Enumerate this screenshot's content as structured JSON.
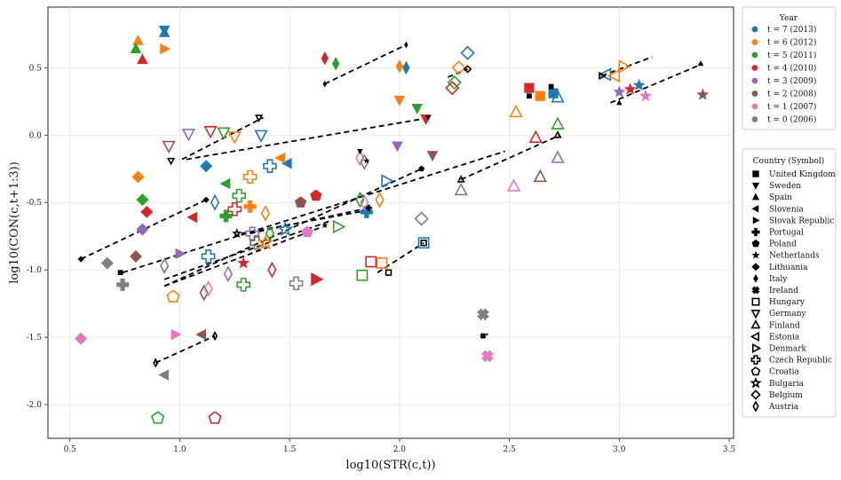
{
  "chart_data": {
    "type": "scatter",
    "xlabel": "log10(STR(c,t))",
    "ylabel": "log10(CON(c,t+1:3))",
    "xlim": [
      0.4,
      3.52
    ],
    "ylim": [
      -2.25,
      0.95
    ],
    "xticks": [
      "0.5",
      "1.0",
      "1.5",
      "2.0",
      "2.5",
      "3.0",
      "3.5"
    ],
    "yticks": [
      "0.5",
      "0.0",
      "-0.5",
      "-1.0",
      "-1.5",
      "-2.0"
    ],
    "grid": true,
    "year_legend": {
      "title": "Year",
      "entries": [
        {
          "label": "t = 7 (2013)",
          "color": "#1f77b4",
          "t": 7
        },
        {
          "label": "t = 6 (2012)",
          "color": "#ff7f0e",
          "t": 6
        },
        {
          "label": "t = 5 (2011)",
          "color": "#2ca02c",
          "t": 5
        },
        {
          "label": "t = 4 (2010)",
          "color": "#d62728",
          "t": 4
        },
        {
          "label": "t = 3 (2009)",
          "color": "#9467bd",
          "t": 3
        },
        {
          "label": "t = 2 (2008)",
          "color": "#8c564b",
          "t": 2
        },
        {
          "label": "t = 1 (2007)",
          "color": "#e377c2",
          "t": 1
        },
        {
          "label": "t = 0 (2006)",
          "color": "#7f7f7f",
          "t": 0
        }
      ]
    },
    "country_legend": {
      "title": "Country (Symbol)",
      "entries": [
        {
          "country": "United Kingdom",
          "symbol": "square",
          "filled": true
        },
        {
          "country": "Sweden",
          "symbol": "triangle-down",
          "filled": true
        },
        {
          "country": "Spain",
          "symbol": "triangle-up",
          "filled": true
        },
        {
          "country": "Slovenia",
          "symbol": "triangle-left",
          "filled": true
        },
        {
          "country": "Slovak Republic",
          "symbol": "triangle-right",
          "filled": true
        },
        {
          "country": "Portugal",
          "symbol": "plus",
          "filled": true
        },
        {
          "country": "Poland",
          "symbol": "pentagon",
          "filled": true
        },
        {
          "country": "Netherlands",
          "symbol": "star",
          "filled": true
        },
        {
          "country": "Lithuania",
          "symbol": "diamond",
          "filled": true
        },
        {
          "country": "Italy",
          "symbol": "thin-diamond",
          "filled": true
        },
        {
          "country": "Ireland",
          "symbol": "x",
          "filled": true
        },
        {
          "country": "Hungary",
          "symbol": "square",
          "filled": false
        },
        {
          "country": "Germany",
          "symbol": "triangle-down",
          "filled": false
        },
        {
          "country": "Finland",
          "symbol": "triangle-up",
          "filled": false
        },
        {
          "country": "Estonia",
          "symbol": "triangle-left",
          "filled": false
        },
        {
          "country": "Denmark",
          "symbol": "triangle-right",
          "filled": false
        },
        {
          "country": "Czech Republic",
          "symbol": "plus",
          "filled": false
        },
        {
          "country": "Croatia",
          "symbol": "pentagon",
          "filled": false
        },
        {
          "country": "Bulgaria",
          "symbol": "star",
          "filled": false
        },
        {
          "country": "Belgium",
          "symbol": "diamond",
          "filled": false
        },
        {
          "country": "Austria",
          "symbol": "thin-diamond",
          "filled": false
        }
      ]
    },
    "trend_lines": [
      {
        "country": "Lithuania",
        "x": [
          0.55,
          1.12
        ],
        "y": [
          -0.92,
          -0.48
        ]
      },
      {
        "country": "United Kingdom",
        "x": [
          0.74,
          2.48
        ],
        "y": [
          -1.02,
          -0.12
        ]
      },
      {
        "country": "Sweden",
        "x": [
          1.03,
          2.14
        ],
        "y": [
          -0.18,
          0.13
        ]
      },
      {
        "country": "Germany",
        "x": [
          1.01,
          1.38
        ],
        "y": [
          -0.18,
          0.13
        ]
      },
      {
        "country": "Netherlands",
        "x": [
          0.93,
          1.68
        ],
        "y": [
          -1.07,
          -0.64
        ]
      },
      {
        "country": "Poland",
        "x": [
          0.93,
          2.1
        ],
        "y": [
          -1.12,
          -0.25
        ]
      },
      {
        "country": "Bulgaria",
        "x": [
          0.93,
          1.65
        ],
        "y": [
          -1.12,
          -0.68
        ]
      },
      {
        "country": "Italy",
        "x": [
          1.66,
          2.03
        ],
        "y": [
          0.38,
          0.67
        ]
      },
      {
        "country": "Belgium",
        "x": [
          2.22,
          2.31
        ],
        "y": [
          0.43,
          0.49
        ]
      },
      {
        "country": "Hungary",
        "x": [
          1.9,
          2.11
        ],
        "y": [
          -1.02,
          -0.8
        ]
      },
      {
        "country": "Czech Republic",
        "x": [
          1.28,
          1.85
        ],
        "y": [
          -0.73,
          -0.56
        ]
      },
      {
        "country": "Austria",
        "x": [
          0.89,
          1.16
        ],
        "y": [
          -1.69,
          -1.49
        ]
      },
      {
        "country": "Ireland",
        "x": [
          2.38,
          2.41
        ],
        "y": [
          -1.49,
          -1.47
        ]
      },
      {
        "country": "Portugal",
        "x": [
          1.32,
          1.86
        ],
        "y": [
          -0.73,
          -0.54
        ]
      },
      {
        "country": "Finland",
        "x": [
          2.28,
          2.73
        ],
        "y": [
          -0.33,
          0.0
        ]
      },
      {
        "country": "Spain",
        "x": [
          2.96,
          3.38
        ],
        "y": [
          0.24,
          0.53
        ]
      },
      {
        "country": "Denmark",
        "x": [
          2.92,
          3.15
        ],
        "y": [
          0.44,
          0.58
        ]
      }
    ],
    "trend_end_points": [
      {
        "country": "Lithuania",
        "x": 0.55,
        "y": -0.92
      },
      {
        "country": "Lithuania",
        "x": 1.12,
        "y": -0.48
      },
      {
        "country": "United Kingdom",
        "x": 0.73,
        "y": -1.02
      },
      {
        "country": "United Kingdom",
        "x": 2.59,
        "y": 0.29
      },
      {
        "country": "United Kingdom",
        "x": 2.69,
        "y": 0.36
      },
      {
        "country": "Sweden",
        "x": 1.82,
        "y": -0.12
      },
      {
        "country": "Sweden",
        "x": 2.13,
        "y": 0.13
      },
      {
        "country": "Germany",
        "x": 1.36,
        "y": 0.13
      },
      {
        "country": "Germany",
        "x": 0.96,
        "y": -0.19
      },
      {
        "country": "Netherlands",
        "x": 1.66,
        "y": -0.67
      },
      {
        "country": "Netherlands",
        "x": 1.85,
        "y": -0.19
      },
      {
        "country": "Poland",
        "x": 2.1,
        "y": -0.25
      },
      {
        "country": "Bulgaria",
        "x": 1.26,
        "y": -0.73
      },
      {
        "country": "Italy",
        "x": 1.66,
        "y": 0.38
      },
      {
        "country": "Italy",
        "x": 2.03,
        "y": 0.67
      },
      {
        "country": "Belgium",
        "x": 2.31,
        "y": 0.49
      },
      {
        "country": "Hungary",
        "x": 1.95,
        "y": -1.02
      },
      {
        "country": "Hungary",
        "x": 2.11,
        "y": -0.8
      },
      {
        "country": "Ireland",
        "x": 2.38,
        "y": -1.49
      },
      {
        "country": "Finland",
        "x": 2.28,
        "y": -0.33
      },
      {
        "country": "Finland",
        "x": 2.72,
        "y": 0.0
      },
      {
        "country": "Spain",
        "x": 3.37,
        "y": 0.53
      },
      {
        "country": "Spain",
        "x": 3.0,
        "y": 0.24
      },
      {
        "country": "Denmark",
        "x": 2.92,
        "y": 0.44
      },
      {
        "country": "Austria",
        "x": 0.89,
        "y": -1.69
      },
      {
        "country": "Austria",
        "x": 1.16,
        "y": -1.49
      },
      {
        "country": "Portugal",
        "x": 1.86,
        "y": -0.54
      }
    ],
    "points": [
      {
        "country": "United Kingdom",
        "t": 7,
        "x": 2.7,
        "y": 0.31
      },
      {
        "country": "United Kingdom",
        "t": 6,
        "x": 2.64,
        "y": 0.29
      },
      {
        "country": "United Kingdom",
        "t": 4,
        "x": 2.59,
        "y": 0.35
      },
      {
        "country": "Sweden",
        "t": 7,
        "x": 0.93,
        "y": 0.78
      },
      {
        "country": "Sweden",
        "t": 6,
        "x": 2.0,
        "y": 0.26
      },
      {
        "country": "Sweden",
        "t": 5,
        "x": 2.08,
        "y": 0.2
      },
      {
        "country": "Sweden",
        "t": 4,
        "x": 2.12,
        "y": 0.12
      },
      {
        "country": "Sweden",
        "t": 3,
        "x": 1.99,
        "y": -0.08
      },
      {
        "country": "Sweden",
        "t": 2,
        "x": 2.15,
        "y": -0.15
      },
      {
        "country": "Spain",
        "t": 7,
        "x": 0.93,
        "y": 0.76
      },
      {
        "country": "Spain",
        "t": 6,
        "x": 0.81,
        "y": 0.7
      },
      {
        "country": "Spain",
        "t": 5,
        "x": 0.8,
        "y": 0.64
      },
      {
        "country": "Spain",
        "t": 4,
        "x": 0.83,
        "y": 0.56
      },
      {
        "country": "Slovenia",
        "t": 7,
        "x": 1.49,
        "y": -0.21
      },
      {
        "country": "Slovenia",
        "t": 6,
        "x": 1.46,
        "y": -0.17
      },
      {
        "country": "Slovenia",
        "t": 5,
        "x": 1.21,
        "y": -0.36
      },
      {
        "country": "Slovenia",
        "t": 4,
        "x": 1.06,
        "y": -0.61
      },
      {
        "country": "Slovenia",
        "t": 2,
        "x": 1.1,
        "y": -1.48
      },
      {
        "country": "Slovenia",
        "t": 0,
        "x": 0.93,
        "y": -1.78
      },
      {
        "country": "Slovak Republic",
        "t": 6,
        "x": 0.93,
        "y": 0.64
      },
      {
        "country": "Slovak Republic",
        "t": 4,
        "x": 1.62,
        "y": -1.07
      },
      {
        "country": "Slovak Republic",
        "t": 3,
        "x": 1.0,
        "y": -0.88
      },
      {
        "country": "Slovak Republic",
        "t": 1,
        "x": 0.98,
        "y": -1.48
      },
      {
        "country": "Portugal",
        "t": 7,
        "x": 1.85,
        "y": -0.57
      },
      {
        "country": "Portugal",
        "t": 6,
        "x": 1.32,
        "y": -0.53
      },
      {
        "country": "Portugal",
        "t": 5,
        "x": 1.21,
        "y": -0.6
      },
      {
        "country": "Portugal",
        "t": 0,
        "x": 0.74,
        "y": -1.11
      },
      {
        "country": "Poland",
        "t": 4,
        "x": 1.62,
        "y": -0.45
      },
      {
        "country": "Poland",
        "t": 2,
        "x": 1.55,
        "y": -0.5
      },
      {
        "country": "Poland",
        "t": 1,
        "x": 1.58,
        "y": -0.72
      },
      {
        "country": "Netherlands",
        "t": 7,
        "x": 3.09,
        "y": 0.37
      },
      {
        "country": "Netherlands",
        "t": 4,
        "x": 3.05,
        "y": 0.34
      },
      {
        "country": "Netherlands",
        "t": 3,
        "x": 3.0,
        "y": 0.32
      },
      {
        "country": "Netherlands",
        "t": 2,
        "x": 3.38,
        "y": 0.3
      },
      {
        "country": "Netherlands",
        "t": 1,
        "x": 3.12,
        "y": 0.29
      },
      {
        "country": "Netherlands",
        "t": 4,
        "x": 1.29,
        "y": -0.95
      },
      {
        "country": "Lithuania",
        "t": 7,
        "x": 1.12,
        "y": -0.23
      },
      {
        "country": "Lithuania",
        "t": 6,
        "x": 0.81,
        "y": -0.31
      },
      {
        "country": "Lithuania",
        "t": 5,
        "x": 0.83,
        "y": -0.48
      },
      {
        "country": "Lithuania",
        "t": 4,
        "x": 0.85,
        "y": -0.57
      },
      {
        "country": "Lithuania",
        "t": 3,
        "x": 0.83,
        "y": -0.7
      },
      {
        "country": "Lithuania",
        "t": 2,
        "x": 0.8,
        "y": -0.9
      },
      {
        "country": "Lithuania",
        "t": 0,
        "x": 0.67,
        "y": -0.95
      },
      {
        "country": "Lithuania",
        "t": 1,
        "x": 0.55,
        "y": -1.51
      },
      {
        "country": "Italy",
        "t": 7,
        "x": 2.03,
        "y": 0.5
      },
      {
        "country": "Italy",
        "t": 6,
        "x": 2.0,
        "y": 0.51
      },
      {
        "country": "Italy",
        "t": 5,
        "x": 1.71,
        "y": 0.53
      },
      {
        "country": "Italy",
        "t": 4,
        "x": 1.66,
        "y": 0.57
      },
      {
        "country": "Ireland",
        "t": 0,
        "x": 2.38,
        "y": -1.33
      },
      {
        "country": "Ireland",
        "t": 1,
        "x": 2.4,
        "y": -1.64
      },
      {
        "country": "Hungary",
        "t": 7,
        "x": 2.11,
        "y": -0.8
      },
      {
        "country": "Hungary",
        "t": 6,
        "x": 1.92,
        "y": -0.95
      },
      {
        "country": "Hungary",
        "t": 4,
        "x": 1.87,
        "y": -0.94
      },
      {
        "country": "Hungary",
        "t": 5,
        "x": 1.83,
        "y": -1.04
      },
      {
        "country": "Germany",
        "t": 7,
        "x": 1.37,
        "y": 0.0
      },
      {
        "country": "Germany",
        "t": 6,
        "x": 1.25,
        "y": -0.01
      },
      {
        "country": "Germany",
        "t": 5,
        "x": 1.2,
        "y": 0.02
      },
      {
        "country": "Germany",
        "t": 4,
        "x": 1.14,
        "y": 0.03
      },
      {
        "country": "Germany",
        "t": 3,
        "x": 1.04,
        "y": 0.01
      },
      {
        "country": "Germany",
        "t": 2,
        "x": 0.95,
        "y": -0.08
      },
      {
        "country": "Finland",
        "t": 7,
        "x": 2.72,
        "y": 0.28
      },
      {
        "country": "Finland",
        "t": 6,
        "x": 2.53,
        "y": 0.17
      },
      {
        "country": "Finland",
        "t": 5,
        "x": 2.72,
        "y": 0.08
      },
      {
        "country": "Finland",
        "t": 4,
        "x": 2.62,
        "y": -0.02
      },
      {
        "country": "Finland",
        "t": 3,
        "x": 2.72,
        "y": -0.17
      },
      {
        "country": "Finland",
        "t": 2,
        "x": 2.64,
        "y": -0.31
      },
      {
        "country": "Finland",
        "t": 1,
        "x": 2.52,
        "y": -0.38
      },
      {
        "country": "Finland",
        "t": 0,
        "x": 2.28,
        "y": -0.41
      },
      {
        "country": "Estonia",
        "t": 7,
        "x": 2.94,
        "y": 0.45
      },
      {
        "country": "Estonia",
        "t": 6,
        "x": 2.98,
        "y": 0.44
      },
      {
        "country": "Denmark",
        "t": 7,
        "x": 1.94,
        "y": -0.34
      },
      {
        "country": "Denmark",
        "t": 5,
        "x": 1.72,
        "y": -0.68
      },
      {
        "country": "Denmark",
        "t": 4,
        "x": 1.62,
        "y": -1.07
      },
      {
        "country": "Denmark",
        "t": 6,
        "x": 3.02,
        "y": 0.51
      },
      {
        "country": "Czech Republic",
        "t": 7,
        "x": 1.41,
        "y": -0.23
      },
      {
        "country": "Czech Republic",
        "t": 6,
        "x": 1.32,
        "y": -0.31
      },
      {
        "country": "Czech Republic",
        "t": 5,
        "x": 1.27,
        "y": -0.45
      },
      {
        "country": "Czech Republic",
        "t": 4,
        "x": 1.25,
        "y": -0.55
      },
      {
        "country": "Czech Republic",
        "t": 3,
        "x": 1.33,
        "y": -0.73
      },
      {
        "country": "Czech Republic",
        "t": 2,
        "x": 1.35,
        "y": -0.8
      },
      {
        "country": "Czech Republic",
        "t": 0,
        "x": 1.53,
        "y": -1.1
      },
      {
        "country": "Czech Republic",
        "t": 5,
        "x": 1.29,
        "y": -1.11
      },
      {
        "country": "Czech Republic",
        "t": 7,
        "x": 1.13,
        "y": -0.9
      },
      {
        "country": "Croatia",
        "t": 6,
        "x": 0.97,
        "y": -1.2
      },
      {
        "country": "Croatia",
        "t": 5,
        "x": 0.9,
        "y": -2.1
      },
      {
        "country": "Croatia",
        "t": 4,
        "x": 1.16,
        "y": -2.1
      },
      {
        "country": "Bulgaria",
        "t": 6,
        "x": 1.39,
        "y": -0.8
      },
      {
        "country": "Bulgaria",
        "t": 7,
        "x": 1.48,
        "y": -0.7
      },
      {
        "country": "Belgium",
        "t": 7,
        "x": 2.31,
        "y": 0.61
      },
      {
        "country": "Belgium",
        "t": 6,
        "x": 2.27,
        "y": 0.5
      },
      {
        "country": "Belgium",
        "t": 5,
        "x": 2.25,
        "y": 0.39
      },
      {
        "country": "Belgium",
        "t": 4,
        "x": 2.24,
        "y": 0.35
      },
      {
        "country": "Belgium",
        "t": 0,
        "x": 2.1,
        "y": -0.62
      },
      {
        "country": "Austria",
        "t": 7,
        "x": 1.16,
        "y": -0.5
      },
      {
        "country": "Austria",
        "t": 6,
        "x": 1.39,
        "y": -0.58
      },
      {
        "country": "Austria",
        "t": 5,
        "x": 1.41,
        "y": -0.73
      },
      {
        "country": "Austria",
        "t": 4,
        "x": 1.42,
        "y": -1.0
      },
      {
        "country": "Austria",
        "t": 3,
        "x": 1.22,
        "y": -1.03
      },
      {
        "country": "Austria",
        "t": 2,
        "x": 1.11,
        "y": -1.17
      },
      {
        "country": "Austria",
        "t": 1,
        "x": 1.13,
        "y": -1.14
      },
      {
        "country": "Austria",
        "t": 0,
        "x": 0.93,
        "y": -0.97
      },
      {
        "country": "Austria",
        "t": 1,
        "x": 1.82,
        "y": -0.17
      },
      {
        "country": "Austria",
        "t": 0,
        "x": 1.84,
        "y": -0.2
      },
      {
        "country": "Austria",
        "t": 5,
        "x": 1.82,
        "y": -0.48
      },
      {
        "country": "Austria",
        "t": 1,
        "x": 1.84,
        "y": -0.5
      },
      {
        "country": "Austria",
        "t": 6,
        "x": 1.91,
        "y": -0.48
      }
    ]
  }
}
